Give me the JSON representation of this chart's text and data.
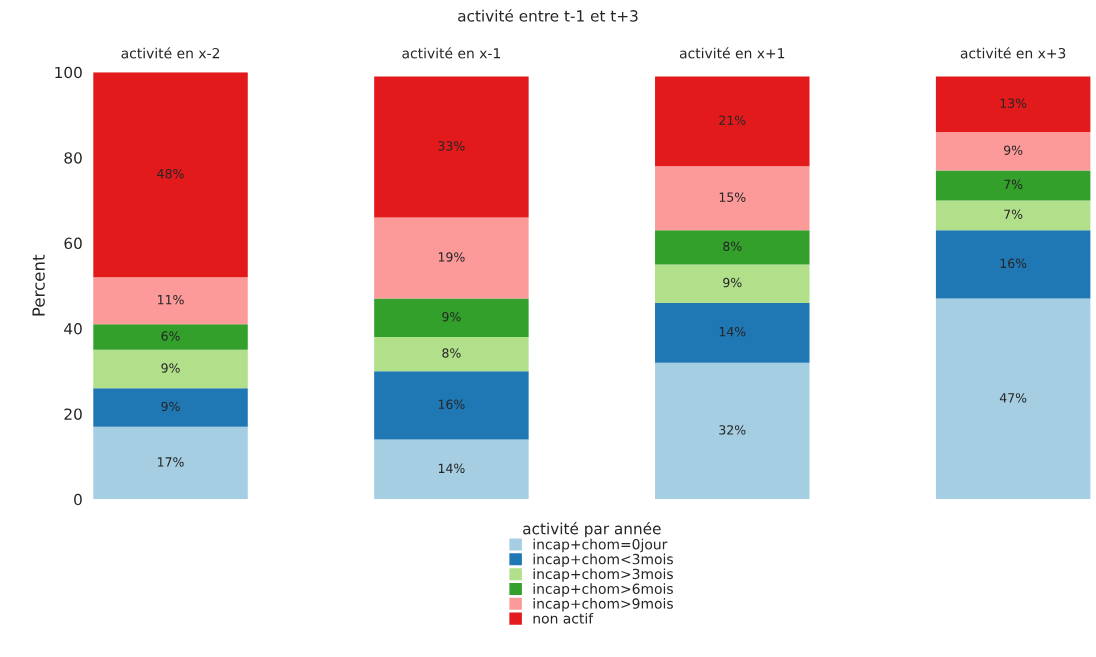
{
  "chart_data": {
    "type": "bar",
    "stacked": true,
    "title": "activité entre t-1 et t+3",
    "ylabel": "Percent",
    "legend_title": "activité par année",
    "legend": "bottom",
    "grid": false,
    "categories": [
      "activité en x-2",
      "activité en x-1",
      "activité en x+1",
      "activité en x+3"
    ],
    "ylim": [
      0,
      100
    ],
    "yticks": [
      0,
      20,
      40,
      60,
      80,
      100
    ],
    "series": [
      {
        "name": "incap+chom=0jour",
        "color": "#a6cee3",
        "values": [
          17,
          14,
          32,
          47
        ],
        "value_labels": [
          "17%",
          "14%",
          "32%",
          "47%"
        ]
      },
      {
        "name": "incap+chom<3mois",
        "color": "#1f78b4",
        "values": [
          9,
          16,
          14,
          16
        ],
        "value_labels": [
          "9%",
          "16%",
          "14%",
          "16%"
        ]
      },
      {
        "name": "incap+chom>3mois",
        "color": "#b2df8a",
        "values": [
          9,
          8,
          9,
          7
        ],
        "value_labels": [
          "9%",
          "8%",
          "9%",
          "7%"
        ]
      },
      {
        "name": "incap+chom>6mois",
        "color": "#33a02c",
        "values": [
          6,
          9,
          8,
          7
        ],
        "value_labels": [
          "6%",
          "9%",
          "8%",
          "7%"
        ]
      },
      {
        "name": "incap+chom>9mois",
        "color": "#fb9a99",
        "values": [
          11,
          19,
          15,
          9
        ],
        "value_labels": [
          "11%",
          "19%",
          "15%",
          "9%"
        ]
      },
      {
        "name": "non actif",
        "color": "#e31a1c",
        "values": [
          48,
          33,
          21,
          13
        ],
        "value_labels": [
          "48%",
          "33%",
          "21%",
          "13%"
        ]
      }
    ]
  }
}
